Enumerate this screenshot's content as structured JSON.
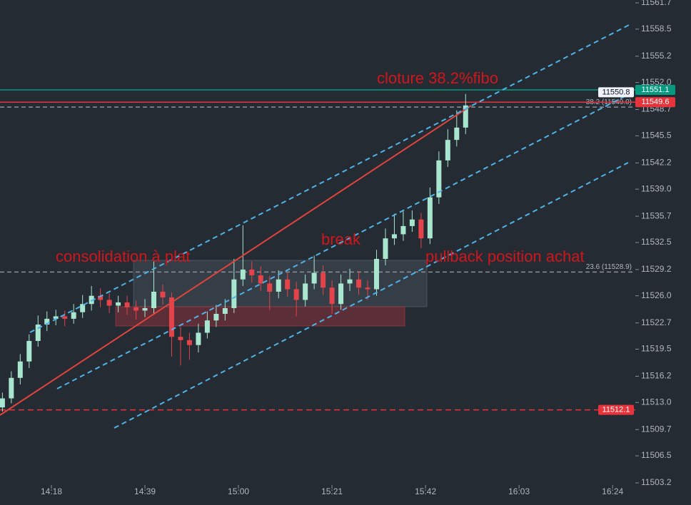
{
  "chart_data": {
    "type": "candlestick",
    "x": [
      847,
      849,
      851,
      853,
      855,
      857,
      859,
      861,
      863,
      865,
      867,
      869,
      871,
      873,
      875,
      877,
      879,
      881,
      883,
      885,
      887,
      889,
      891,
      893,
      895,
      897,
      899,
      901,
      903,
      905,
      907,
      909,
      911,
      913,
      915,
      917,
      919,
      921,
      923,
      925,
      927,
      929,
      931,
      933,
      935,
      937,
      939,
      941,
      943,
      945,
      947,
      949,
      951
    ],
    "ohlc": [
      [
        11512.4,
        11514.2,
        11511.9,
        11513.5
      ],
      [
        11513.5,
        11516.8,
        11512.9,
        11516
      ],
      [
        11516,
        11518.9,
        11515.2,
        11518
      ],
      [
        11518,
        11521.3,
        11517.2,
        11520.5
      ],
      [
        11520.5,
        11523.6,
        11519.8,
        11522.5
      ],
      [
        11522.5,
        11524.1,
        11521.7,
        11523.2
      ],
      [
        11523.2,
        11524.3,
        11522.4,
        11523.5
      ],
      [
        11523.5,
        11524.2,
        11522.3,
        11523.2
      ],
      [
        11523.2,
        11525,
        11522.6,
        11524
      ],
      [
        11524,
        11526.1,
        11523.3,
        11525
      ],
      [
        11525,
        11527.2,
        11524.2,
        11526
      ],
      [
        11526,
        11526.9,
        11524.6,
        11525.5
      ],
      [
        11525.5,
        11526.3,
        11523.9,
        11524.8
      ],
      [
        11524.8,
        11526,
        11524,
        11525.2
      ],
      [
        11525.2,
        11526,
        11523.7,
        11524.6
      ],
      [
        11524.6,
        11525.4,
        11523.1,
        11524.2
      ],
      [
        11524.2,
        11525.6,
        11523.4,
        11524.5
      ],
      [
        11524.5,
        11530.3,
        11523.8,
        11526.5
      ],
      [
        11526.5,
        11527.4,
        11524.9,
        11525.8
      ],
      [
        11525.8,
        11526.4,
        11518.6,
        11521
      ],
      [
        11521,
        11522.2,
        11517.5,
        11520.6
      ],
      [
        11520.6,
        11521.5,
        11518.2,
        11520
      ],
      [
        11520,
        11522.6,
        11519.1,
        11521.5
      ],
      [
        11521.5,
        11524.1,
        11520.8,
        11523
      ],
      [
        11523,
        11524.9,
        11522.2,
        11523.8
      ],
      [
        11523.8,
        11525.6,
        11523,
        11524.5
      ],
      [
        11524.5,
        11530.5,
        11523.9,
        11528
      ],
      [
        11528,
        11534.6,
        11527.2,
        11529.2
      ],
      [
        11529.2,
        11530.2,
        11527.6,
        11528.5
      ],
      [
        11528.5,
        11529.6,
        11526.6,
        11527.5
      ],
      [
        11527.5,
        11528.4,
        11524.3,
        11526.5
      ],
      [
        11526.5,
        11529.1,
        11525.7,
        11528
      ],
      [
        11528,
        11528.9,
        11525.9,
        11526.8
      ],
      [
        11526.8,
        11527.7,
        11523.5,
        11525.5
      ],
      [
        11525.5,
        11528.6,
        11524.7,
        11527.5
      ],
      [
        11527.5,
        11530.9,
        11526.8,
        11528.8
      ],
      [
        11528.8,
        11529.7,
        11526.1,
        11527
      ],
      [
        11527,
        11527.9,
        11523.8,
        11525
      ],
      [
        11525,
        11528.6,
        11524.3,
        11527.5
      ],
      [
        11527.5,
        11529.3,
        11526.6,
        11528
      ],
      [
        11528,
        11529,
        11526.1,
        11527
      ],
      [
        11527,
        11527.9,
        11525.5,
        11526.8
      ],
      [
        11526.8,
        11531.6,
        11526,
        11530.5
      ],
      [
        11530.5,
        11534.2,
        11529.7,
        11533
      ],
      [
        11533,
        11536,
        11532.2,
        11533.5
      ],
      [
        11533.5,
        11536.3,
        11532.7,
        11534.5
      ],
      [
        11534.5,
        11536.4,
        11533.8,
        11535.3
      ],
      [
        11535.3,
        11536.1,
        11531.8,
        11533
      ],
      [
        11533,
        11539.2,
        11532.3,
        11538
      ],
      [
        11538,
        11543.6,
        11537.2,
        11542.5
      ],
      [
        11542.5,
        11546.3,
        11541.7,
        11545
      ],
      [
        11545,
        11548.6,
        11544.2,
        11546.5
      ],
      [
        11546.5,
        11550.6,
        11545.7,
        11549.2
      ]
    ],
    "up_color": "#a8e6cf",
    "down_color": "#e5434b",
    "xlim": [
      846.46,
      989.1
    ],
    "xticks": [
      {
        "value": 858,
        "label": "14:18"
      },
      {
        "value": 879,
        "label": "14:39"
      },
      {
        "value": 900,
        "label": "15:00"
      },
      {
        "value": 921,
        "label": "15:21"
      },
      {
        "value": 942,
        "label": "15:42"
      },
      {
        "value": 963,
        "label": "16:03"
      },
      {
        "value": 984,
        "label": "16:24"
      }
    ],
    "ylim": [
      11502.94,
      11562.05
    ],
    "yticks": [
      11561.7,
      11558.5,
      11555.2,
      {
        "value": 11552,
        "label": "11552.0"
      },
      11548.7,
      11545.5,
      11542.2,
      {
        "value": 11539,
        "label": "11539.0"
      },
      11535.7,
      11532.5,
      11529.2,
      {
        "value": 11526,
        "label": "11526.0"
      },
      11522.7,
      11519.5,
      11516.2,
      {
        "value": 11513,
        "label": "11513.0"
      },
      11509.7,
      11506.5,
      11503.2
    ],
    "fib_levels": [
      {
        "value": 11549.0,
        "label": "38.2 (11549.0)"
      },
      {
        "value": 11528.9,
        "label": "23.6 (11528.9)"
      }
    ],
    "price_lines": [
      {
        "value": 11551.1,
        "color": "#089981",
        "style": "solid",
        "tag": "axis",
        "text_color": "#ffffff"
      },
      {
        "value": 11550.8,
        "color": "#f0f3fa",
        "style": "none",
        "tag": "plot",
        "text_color": "#131722"
      },
      {
        "value": 11549.6,
        "color": "#e5343c",
        "style": "solid",
        "tag": "axis",
        "text_color": "#ffffff"
      },
      {
        "value": 11512.1,
        "color": "#e5343c",
        "style": "dashed",
        "tag": "plot",
        "text_color": "#ffffff"
      }
    ],
    "annotations": [
      "cloture 38.2%fibo",
      "consolidation à plat",
      "break",
      "pullback position achat"
    ]
  }
}
